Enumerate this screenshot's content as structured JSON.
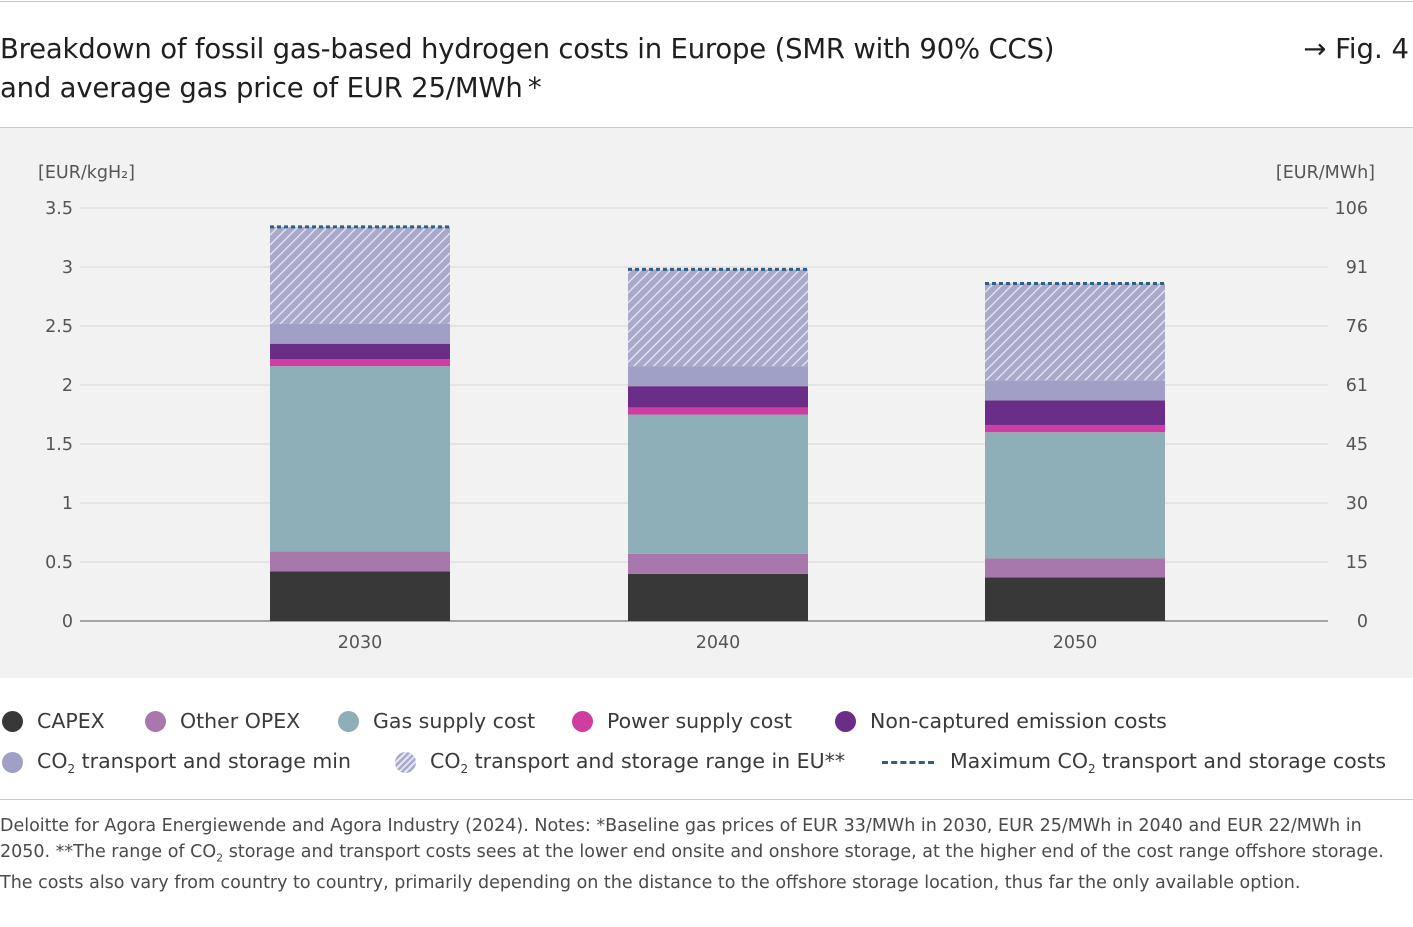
{
  "title_line1": "Breakdown of fossil gas-based hydrogen costs in Europe (SMR with 90% CCS)",
  "title_line2": "and average gas price of EUR 25/MWh *",
  "figure_ref": "→ Fig. 4",
  "colors": {
    "capex": "#383838",
    "other_opex": "#a878ad",
    "gas_supply": "#8fafb8",
    "power_supply": "#cf3ca2",
    "non_captured": "#6a2d88",
    "co2_min": "#a0a0c6",
    "co2_range": "#a9a9cc",
    "max_line": "#2e5f86"
  },
  "legend": {
    "capex": "CAPEX",
    "other_opex": "Other OPEX",
    "gas_supply": "Gas supply cost",
    "power_supply": "Power supply cost",
    "non_captured": "Non-captured emission costs",
    "co2_min_a": "CO",
    "co2_min_b": "transport and storage min",
    "co2_range_a": "CO",
    "co2_range_b": "transport and storage range in EU**",
    "max_a": "Maximum CO",
    "max_b": "transport and storage costs"
  },
  "source_a": "Deloitte for Agora Energiewende and Agora Industry (2024). Notes: *Baseline gas prices of EUR 33/MWh in 2030, EUR 25/MWh in 2040 and EUR 22/MWh in 2050. **The range of CO",
  "source_b": " storage and transport costs sees at the lower end onsite and onshore storage, at the higher end of the cost range offshore storage. The costs also vary from country to country, primarily depending on the distance to the offshore storage location, thus far the only available option.",
  "chart_data": {
    "type": "bar",
    "stacked": true,
    "categories": [
      "2030",
      "2040",
      "2050"
    ],
    "series": [
      {
        "name": "CAPEX",
        "color_key": "capex",
        "values": [
          0.42,
          0.4,
          0.37
        ]
      },
      {
        "name": "Other OPEX",
        "color_key": "other_opex",
        "values": [
          0.17,
          0.17,
          0.16
        ]
      },
      {
        "name": "Gas supply cost",
        "color_key": "gas_supply",
        "values": [
          1.57,
          1.18,
          1.07
        ]
      },
      {
        "name": "Power supply cost",
        "color_key": "power_supply",
        "values": [
          0.06,
          0.06,
          0.06
        ]
      },
      {
        "name": "Non-captured emission costs",
        "color_key": "non_captured",
        "values": [
          0.13,
          0.18,
          0.21
        ]
      },
      {
        "name": "CO2 transport and storage min",
        "color_key": "co2_min",
        "values": [
          0.17,
          0.17,
          0.17
        ]
      },
      {
        "name": "CO2 transport and storage range in EU**",
        "color_key": "co2_range",
        "hatched": true,
        "values": [
          0.82,
          0.82,
          0.82
        ]
      }
    ],
    "max_line": {
      "name": "Maximum CO2 transport and storage costs",
      "values": [
        3.34,
        2.98,
        2.86
      ]
    },
    "ylabel_left": "[EUR/kgH₂]",
    "ylabel_right": "[EUR/MWh]",
    "ylim": [
      0,
      3.5
    ],
    "yticks_left": [
      "0",
      "0.5",
      "1",
      "1.5",
      "2",
      "2.5",
      "3",
      "3.5"
    ],
    "yticks_right": [
      "0",
      "15",
      "30",
      "45",
      "61",
      "76",
      "91",
      "106"
    ],
    "grid": true
  }
}
